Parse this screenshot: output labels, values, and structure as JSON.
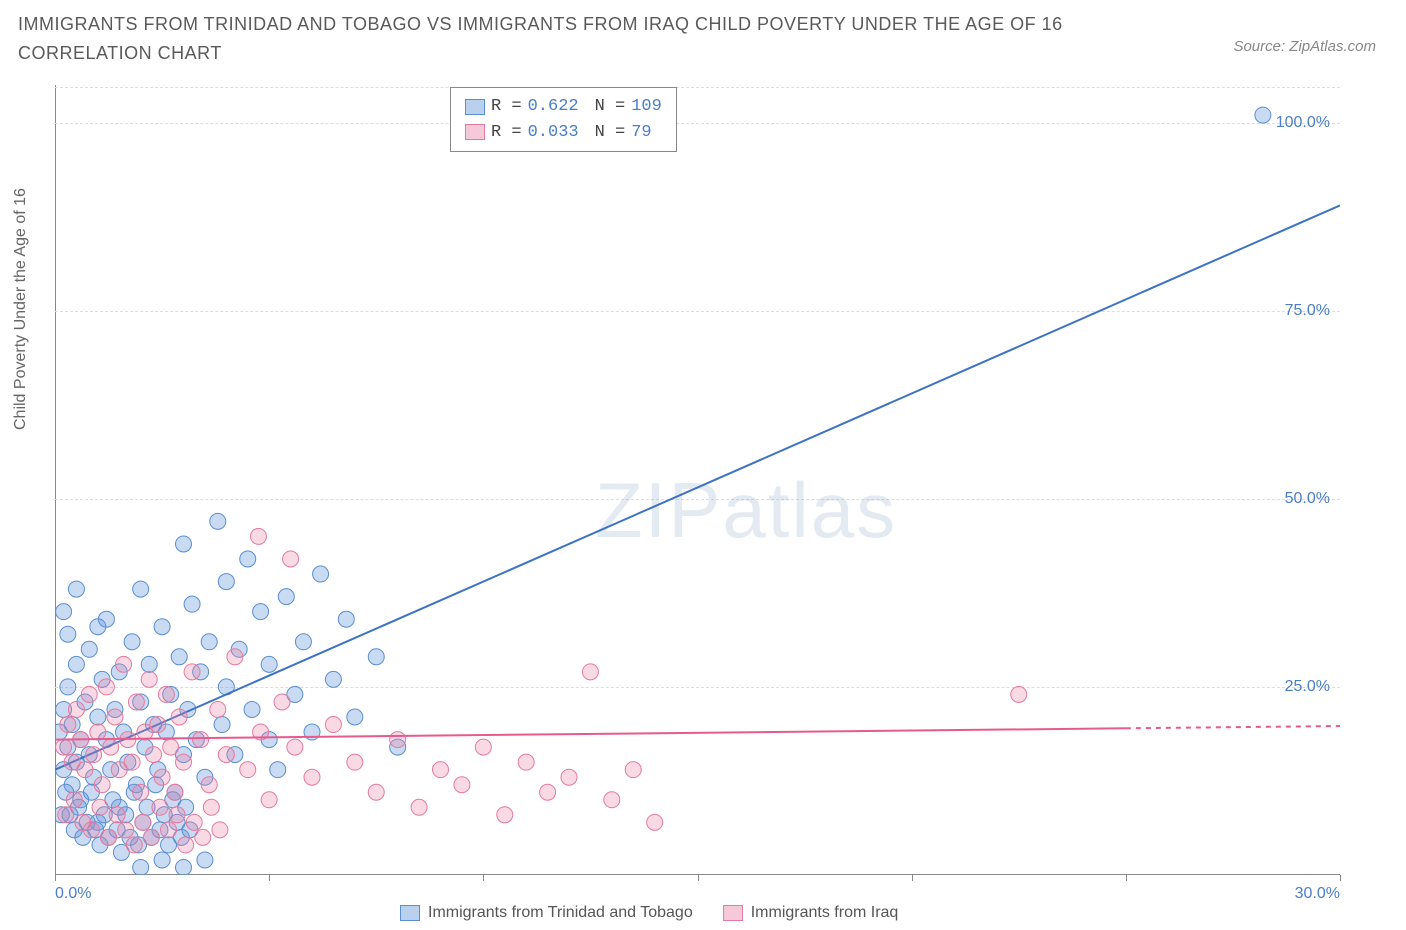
{
  "title": "IMMIGRANTS FROM TRINIDAD AND TOBAGO VS IMMIGRANTS FROM IRAQ CHILD POVERTY UNDER THE AGE OF 16 CORRELATION CHART",
  "source": "Source: ZipAtlas.com",
  "y_axis_label": "Child Poverty Under the Age of 16",
  "watermark_a": "ZIP",
  "watermark_b": "atlas",
  "chart": {
    "type": "scatter",
    "xlim": [
      0,
      30
    ],
    "ylim": [
      0,
      105
    ],
    "x_ticks": [
      0,
      5,
      10,
      15,
      20,
      25,
      30
    ],
    "x_tick_labels": [
      "0.0%",
      "",
      "",
      "",
      "",
      "",
      "30.0%"
    ],
    "y_ticks": [
      25,
      50,
      75,
      100
    ],
    "y_tick_labels": [
      "25.0%",
      "50.0%",
      "75.0%",
      "100.0%"
    ],
    "grid_color": "#dddddd",
    "background_color": "#ffffff",
    "axis_color": "#888888",
    "tick_label_color": "#4a7ec9",
    "series": [
      {
        "name": "Immigrants from Trinidad and Tobago",
        "color_fill": "rgba(100,150,220,0.35)",
        "color_stroke": "#5a8fd0",
        "swatch_fill": "#b9d0ef",
        "swatch_border": "#5a8fd0",
        "marker_radius": 8,
        "R": "0.622",
        "N": "109",
        "trend": {
          "x1": 0,
          "y1": 14,
          "x2": 30,
          "y2": 89,
          "color": "#3d72c4",
          "width": 2
        },
        "points": [
          [
            0.1,
            19
          ],
          [
            0.2,
            14
          ],
          [
            0.2,
            22
          ],
          [
            0.3,
            17
          ],
          [
            0.3,
            25
          ],
          [
            0.4,
            12
          ],
          [
            0.4,
            20
          ],
          [
            0.5,
            15
          ],
          [
            0.5,
            28
          ],
          [
            0.6,
            18
          ],
          [
            0.6,
            10
          ],
          [
            0.7,
            23
          ],
          [
            0.8,
            16
          ],
          [
            0.8,
            30
          ],
          [
            0.9,
            13
          ],
          [
            1.0,
            21
          ],
          [
            1.0,
            7
          ],
          [
            1.1,
            26
          ],
          [
            1.2,
            18
          ],
          [
            1.2,
            34
          ],
          [
            1.3,
            14
          ],
          [
            1.4,
            22
          ],
          [
            1.5,
            9
          ],
          [
            1.5,
            27
          ],
          [
            1.6,
            19
          ],
          [
            1.7,
            15
          ],
          [
            1.8,
            31
          ],
          [
            1.9,
            12
          ],
          [
            2.0,
            23
          ],
          [
            2.0,
            38
          ],
          [
            2.1,
            17
          ],
          [
            2.2,
            28
          ],
          [
            2.3,
            20
          ],
          [
            2.4,
            14
          ],
          [
            2.5,
            33
          ],
          [
            2.6,
            19
          ],
          [
            2.7,
            24
          ],
          [
            2.8,
            11
          ],
          [
            2.9,
            29
          ],
          [
            3.0,
            16
          ],
          [
            3.0,
            44
          ],
          [
            3.1,
            22
          ],
          [
            3.2,
            36
          ],
          [
            3.3,
            18
          ],
          [
            3.4,
            27
          ],
          [
            3.5,
            13
          ],
          [
            3.6,
            31
          ],
          [
            3.8,
            47
          ],
          [
            3.9,
            20
          ],
          [
            4.0,
            25
          ],
          [
            4.0,
            39
          ],
          [
            4.2,
            16
          ],
          [
            4.3,
            30
          ],
          [
            4.5,
            42
          ],
          [
            4.6,
            22
          ],
          [
            4.8,
            35
          ],
          [
            5.0,
            18
          ],
          [
            5.0,
            28
          ],
          [
            5.2,
            14
          ],
          [
            5.4,
            37
          ],
          [
            5.6,
            24
          ],
          [
            5.8,
            31
          ],
          [
            6.0,
            19
          ],
          [
            6.2,
            40
          ],
          [
            6.5,
            26
          ],
          [
            6.8,
            34
          ],
          [
            7.0,
            21
          ],
          [
            7.5,
            29
          ],
          [
            8.0,
            17
          ],
          [
            0.15,
            8
          ],
          [
            0.25,
            11
          ],
          [
            0.35,
            8
          ],
          [
            0.45,
            6
          ],
          [
            0.55,
            9
          ],
          [
            0.65,
            5
          ],
          [
            0.75,
            7
          ],
          [
            0.85,
            11
          ],
          [
            0.95,
            6
          ],
          [
            1.05,
            4
          ],
          [
            1.15,
            8
          ],
          [
            1.25,
            5
          ],
          [
            1.35,
            10
          ],
          [
            1.45,
            6
          ],
          [
            1.55,
            3
          ],
          [
            1.65,
            8
          ],
          [
            1.75,
            5
          ],
          [
            1.85,
            11
          ],
          [
            1.95,
            4
          ],
          [
            2.05,
            7
          ],
          [
            2.15,
            9
          ],
          [
            2.25,
            5
          ],
          [
            2.35,
            12
          ],
          [
            2.45,
            6
          ],
          [
            2.55,
            8
          ],
          [
            2.65,
            4
          ],
          [
            2.75,
            10
          ],
          [
            2.85,
            7
          ],
          [
            2.95,
            5
          ],
          [
            3.05,
            9
          ],
          [
            3.15,
            6
          ],
          [
            0.2,
            35
          ],
          [
            0.3,
            32
          ],
          [
            0.5,
            38
          ],
          [
            1.0,
            33
          ],
          [
            2.0,
            1
          ],
          [
            2.5,
            2
          ],
          [
            3.0,
            1
          ],
          [
            28.2,
            101
          ],
          [
            3.5,
            2
          ]
        ]
      },
      {
        "name": "Immigrants from Iraq",
        "color_fill": "rgba(235,130,165,0.30)",
        "color_stroke": "#e57aa0",
        "swatch_fill": "#f5c9d9",
        "swatch_border": "#e57aa0",
        "marker_radius": 8,
        "R": "0.033",
        "N": " 79",
        "trend": {
          "x1": 0,
          "y1": 18,
          "x2": 25,
          "y2": 19.5,
          "color": "#e85a8e",
          "width": 2,
          "dash_extend_to": 30
        },
        "points": [
          [
            0.2,
            17
          ],
          [
            0.3,
            20
          ],
          [
            0.4,
            15
          ],
          [
            0.5,
            22
          ],
          [
            0.6,
            18
          ],
          [
            0.7,
            14
          ],
          [
            0.8,
            24
          ],
          [
            0.9,
            16
          ],
          [
            1.0,
            19
          ],
          [
            1.1,
            12
          ],
          [
            1.2,
            25
          ],
          [
            1.3,
            17
          ],
          [
            1.4,
            21
          ],
          [
            1.5,
            14
          ],
          [
            1.6,
            28
          ],
          [
            1.7,
            18
          ],
          [
            1.8,
            15
          ],
          [
            1.9,
            23
          ],
          [
            2.0,
            11
          ],
          [
            2.1,
            19
          ],
          [
            2.2,
            26
          ],
          [
            2.3,
            16
          ],
          [
            2.4,
            20
          ],
          [
            2.5,
            13
          ],
          [
            2.6,
            24
          ],
          [
            2.7,
            17
          ],
          [
            2.8,
            11
          ],
          [
            2.9,
            21
          ],
          [
            3.0,
            15
          ],
          [
            3.2,
            27
          ],
          [
            3.4,
            18
          ],
          [
            3.6,
            12
          ],
          [
            3.8,
            22
          ],
          [
            4.0,
            16
          ],
          [
            4.2,
            29
          ],
          [
            4.5,
            14
          ],
          [
            4.8,
            19
          ],
          [
            5.0,
            10
          ],
          [
            5.3,
            23
          ],
          [
            5.6,
            17
          ],
          [
            6.0,
            13
          ],
          [
            6.5,
            20
          ],
          [
            7.0,
            15
          ],
          [
            7.5,
            11
          ],
          [
            8.0,
            18
          ],
          [
            8.5,
            9
          ],
          [
            9.0,
            14
          ],
          [
            9.5,
            12
          ],
          [
            10.0,
            17
          ],
          [
            10.5,
            8
          ],
          [
            11.0,
            15
          ],
          [
            11.5,
            11
          ],
          [
            12.0,
            13
          ],
          [
            12.5,
            27
          ],
          [
            13.0,
            10
          ],
          [
            13.5,
            14
          ],
          [
            14.0,
            7
          ],
          [
            22.5,
            24
          ],
          [
            0.25,
            8
          ],
          [
            0.45,
            10
          ],
          [
            0.65,
            7
          ],
          [
            0.85,
            6
          ],
          [
            1.05,
            9
          ],
          [
            1.25,
            5
          ],
          [
            1.45,
            8
          ],
          [
            1.65,
            6
          ],
          [
            1.85,
            4
          ],
          [
            2.05,
            7
          ],
          [
            2.25,
            5
          ],
          [
            2.45,
            9
          ],
          [
            2.65,
            6
          ],
          [
            2.85,
            8
          ],
          [
            3.05,
            4
          ],
          [
            3.25,
            7
          ],
          [
            3.45,
            5
          ],
          [
            3.65,
            9
          ],
          [
            3.85,
            6
          ],
          [
            4.75,
            45
          ],
          [
            5.5,
            42
          ]
        ]
      }
    ]
  },
  "stats_box": {
    "R_label": "R =",
    "N_label": "N ="
  },
  "bottom_legend": {
    "items": [
      "Immigrants from Trinidad and Tobago",
      "Immigrants from Iraq"
    ]
  }
}
